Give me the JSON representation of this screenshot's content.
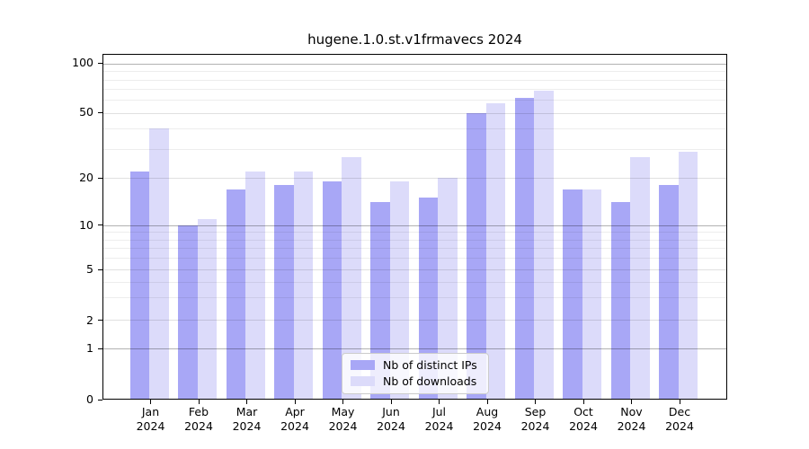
{
  "title": "hugene.1.0.st.v1frmavecs 2024",
  "chart_data": {
    "type": "bar",
    "title": "hugene.1.0.st.v1frmavecs 2024",
    "categories": [
      "Jan",
      "Feb",
      "Mar",
      "Apr",
      "May",
      "Jun",
      "Jul",
      "Aug",
      "Sep",
      "Oct",
      "Nov",
      "Dec"
    ],
    "x_year_label": "2024",
    "series": [
      {
        "name": "Nb of distinct IPs",
        "color": "#a8a7f6",
        "values": [
          22,
          10,
          17,
          18,
          19,
          14,
          15,
          50,
          62,
          17,
          14,
          18
        ]
      },
      {
        "name": "Nb of downloads",
        "color": "#dcdbfa",
        "values": [
          40,
          11,
          22,
          22,
          27,
          19,
          20,
          57,
          68,
          17,
          27,
          29
        ]
      }
    ],
    "yaxis": {
      "scale": "log-like with 0 baseline",
      "ticks": [
        0,
        1,
        2,
        5,
        10,
        20,
        50,
        100
      ],
      "decade_ticks": [
        1,
        10,
        100
      ],
      "minor_ticks": [
        3,
        4,
        6,
        7,
        8,
        9,
        30,
        40,
        60,
        70,
        80,
        90
      ],
      "top_value": 113
    },
    "grid": true,
    "legend_position": "bottom-center"
  }
}
